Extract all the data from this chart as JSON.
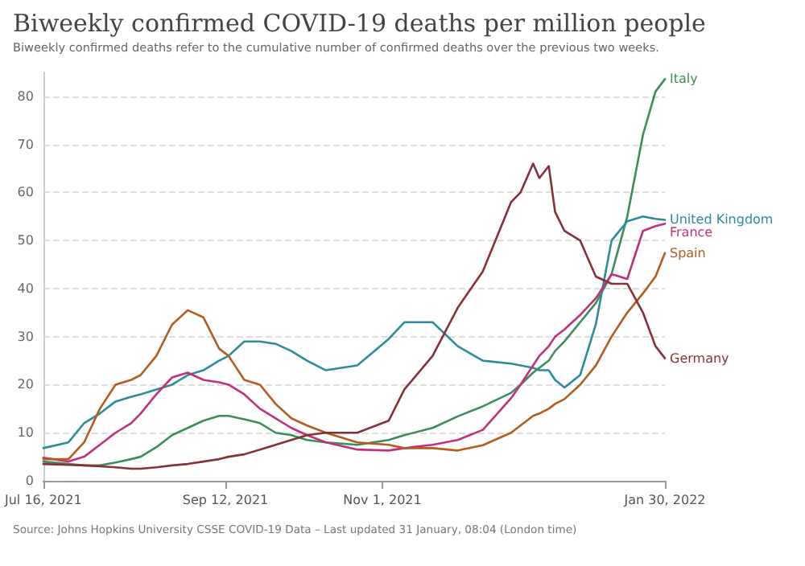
{
  "chart_data": {
    "type": "line",
    "title": "Biweekly confirmed COVID-19 deaths per million people",
    "subtitle": "Biweekly confirmed deaths refer to the cumulative number of confirmed deaths over the previous two weeks.",
    "annotations": [
      "Source: Johns Hopkins University CSSE COVID-19 Data – Last updated 31 January, 08:04 (London time)"
    ],
    "x": [
      "2021-07-16",
      "2021-07-24",
      "2021-07-29",
      "2021-08-03",
      "2021-08-08",
      "2021-08-13",
      "2021-08-16",
      "2021-08-21",
      "2021-08-26",
      "2021-08-31",
      "2021-09-05",
      "2021-09-10",
      "2021-09-13",
      "2021-09-18",
      "2021-09-23",
      "2021-09-28",
      "2021-10-03",
      "2021-10-08",
      "2021-10-14",
      "2021-10-24",
      "2021-11-03",
      "2021-11-08",
      "2021-11-17",
      "2021-11-25",
      "2021-12-03",
      "2021-12-12",
      "2021-12-15",
      "2021-12-19",
      "2021-12-21",
      "2021-12-24",
      "2021-12-26",
      "2021-12-29",
      "2022-01-03",
      "2022-01-08",
      "2022-01-13",
      "2022-01-18",
      "2022-01-23",
      "2022-01-27",
      "2022-01-30"
    ],
    "series": [
      {
        "name": "Italy",
        "color": "#3c8d5a",
        "values": [
          4,
          3.5,
          3.2,
          3.2,
          3.8,
          4.5,
          5,
          7,
          9.5,
          11,
          12.5,
          13.5,
          13.5,
          12.8,
          12,
          10,
          9.5,
          8.5,
          8,
          7.5,
          8.5,
          9.5,
          11,
          13.4,
          15.5,
          18.3,
          20,
          22.5,
          23.5,
          25,
          27,
          29,
          33,
          37,
          43,
          55,
          72,
          81,
          83.6
        ]
      },
      {
        "name": "United Kingdom",
        "color": "#2c8c99",
        "values": [
          6.8,
          8,
          12,
          14,
          16.5,
          17.5,
          18,
          19,
          20,
          22,
          23,
          25,
          26,
          29,
          29,
          28.5,
          27,
          25,
          23,
          24,
          29.5,
          33,
          33,
          28,
          25,
          24.4,
          24,
          23.5,
          23,
          23,
          21,
          19.4,
          22,
          32.6,
          50,
          54,
          55,
          54.5,
          54.3
        ]
      },
      {
        "name": "France",
        "color": "#c2307c",
        "values": [
          4.8,
          4,
          5,
          7.5,
          10,
          12,
          14,
          18,
          21.5,
          22.5,
          21,
          20.5,
          20,
          18,
          15,
          13,
          11,
          9.5,
          8,
          6.5,
          6.3,
          6.8,
          7.5,
          8.5,
          10.6,
          17.2,
          20,
          24,
          26,
          28,
          30,
          31.5,
          34.5,
          38,
          43,
          42,
          52,
          53,
          53.5
        ]
      },
      {
        "name": "Spain",
        "color": "#b35c1e",
        "values": [
          4.5,
          4.5,
          8,
          15,
          20,
          21,
          22,
          26,
          32.5,
          35.5,
          34,
          27.5,
          26,
          21,
          20,
          16,
          13,
          11.5,
          10,
          8,
          7.5,
          6.8,
          6.8,
          6.3,
          7.4,
          10,
          11.5,
          13.5,
          14,
          15,
          16,
          17,
          20,
          24,
          30,
          35,
          39,
          42.5,
          47.4
        ]
      },
      {
        "name": "Germany",
        "color": "#883039",
        "values": [
          3.5,
          3.3,
          3.2,
          3,
          2.8,
          2.5,
          2.5,
          2.8,
          3.2,
          3.5,
          4,
          4.5,
          5,
          5.5,
          6.5,
          7.5,
          8.5,
          9.5,
          10,
          10,
          12.5,
          19,
          26,
          36,
          43.6,
          58,
          60,
          66,
          63,
          65.5,
          56,
          52,
          50,
          42.5,
          41,
          41,
          35,
          28,
          25.5
        ]
      }
    ],
    "xlim": [
      "2021-07-16",
      "2022-01-30"
    ],
    "xticks": [
      {
        "value": "2021-07-16",
        "label": "Jul 16, 2021"
      },
      {
        "value": "2021-09-12",
        "label": "Sep 12, 2021"
      },
      {
        "value": "2021-11-01",
        "label": "Nov 1, 2021"
      },
      {
        "value": "2022-01-30",
        "label": "Jan 30, 2022"
      }
    ],
    "ylim": [
      0,
      85
    ],
    "yticks": [
      0,
      10,
      20,
      30,
      40,
      50,
      60,
      70,
      80
    ],
    "grid": "y",
    "marker": "none",
    "line_style": "solid"
  }
}
